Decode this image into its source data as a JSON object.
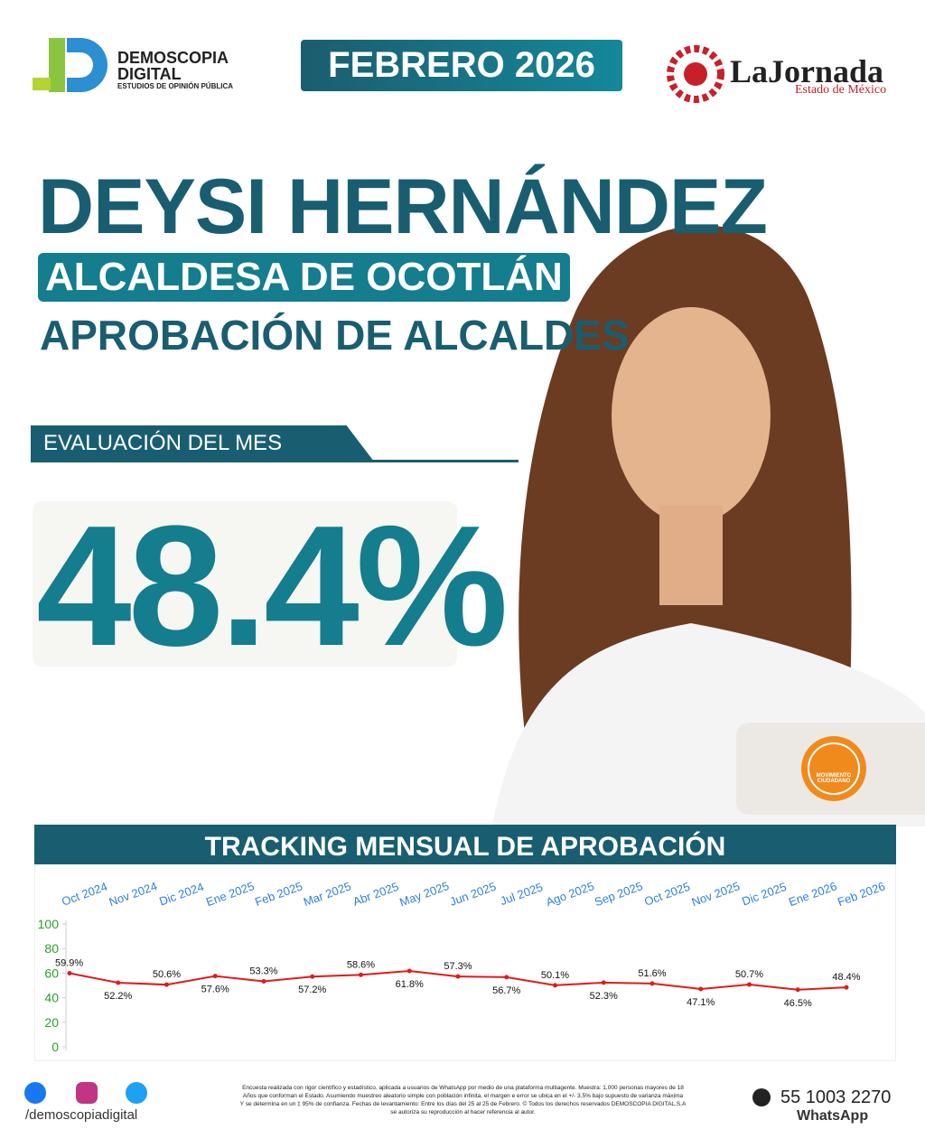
{
  "header": {
    "brand": {
      "name": "DEMOSCOPIA",
      "name2": "DIGITAL",
      "tagline": "ESTUDIOS DE OPINIÓN PÚBLICA"
    },
    "date": "FEBRERO 2026",
    "partner": {
      "name": "LaJornada",
      "region": "Estado de México"
    }
  },
  "hero": {
    "name": "DEYSI HERNÁNDEZ",
    "role": "ALCALDESA DE OCOTLÁN",
    "subject": "APROBACIÓN DE ALCALDES",
    "eval_label": "EVALUACIÓN DEL MES",
    "eval_value": "48.4%",
    "party": "MOVIMIENTO CIUDADANO"
  },
  "chart_data": {
    "type": "line",
    "title": "TRACKING MENSUAL DE APROBACIÓN",
    "categories": [
      "Oct 2024",
      "Nov 2024",
      "Dic 2024",
      "Ene 2025",
      "Feb 2025",
      "Mar 2025",
      "Abr 2025",
      "May 2025",
      "Jun 2025",
      "Jul 2025",
      "Ago 2025",
      "Sep 2025",
      "Oct 2025",
      "Nov 2025",
      "Dic 2025",
      "Ene 2026",
      "Feb 2026"
    ],
    "values": [
      59.9,
      52.2,
      50.6,
      57.6,
      53.3,
      57.2,
      58.6,
      61.8,
      57.3,
      56.7,
      50.1,
      52.3,
      51.6,
      47.1,
      50.7,
      46.5,
      48.4
    ],
    "value_labels": [
      "59.9%",
      "52.2%",
      "50.6%",
      "57.6%",
      "53.3%",
      "57.2%",
      "58.6%",
      "61.8%",
      "57.3%",
      "56.7%",
      "50.1%",
      "52.3%",
      "51.6%",
      "47.1%",
      "50.7%",
      "46.5%",
      "48.4%"
    ],
    "color": "#e01b1b",
    "ylim": [
      0,
      100
    ],
    "yticks": [
      0,
      20,
      40,
      60,
      80,
      100
    ]
  },
  "footer": {
    "social": "/demoscopiadigital",
    "disclaimer": [
      "Encuesta realizada con rigor científico y estadístico, aplicada a usuarios de WhatsApp por medio de una plataforma multiagente. Muestra: 1,000 personas mayores de 18",
      "Años que conforman el Estado. Asumiendo muestreo aleatorio simple con población infinita, el margen e error se ubica en el +/- 3.5% bajo supuesto de varianza máxima",
      "Y se determina en un ‡ 95% de confianza. Fechas de levantamiento: Entre los días del 25 al 25 de Febrero. © Todos los derechos reservados DEMOSCOPIA DIGITAL,S.A",
      "se autoriza su reproducción al hacer referencia al autor."
    ],
    "phone": "55 1003 2270",
    "channel": "WhatsApp"
  }
}
